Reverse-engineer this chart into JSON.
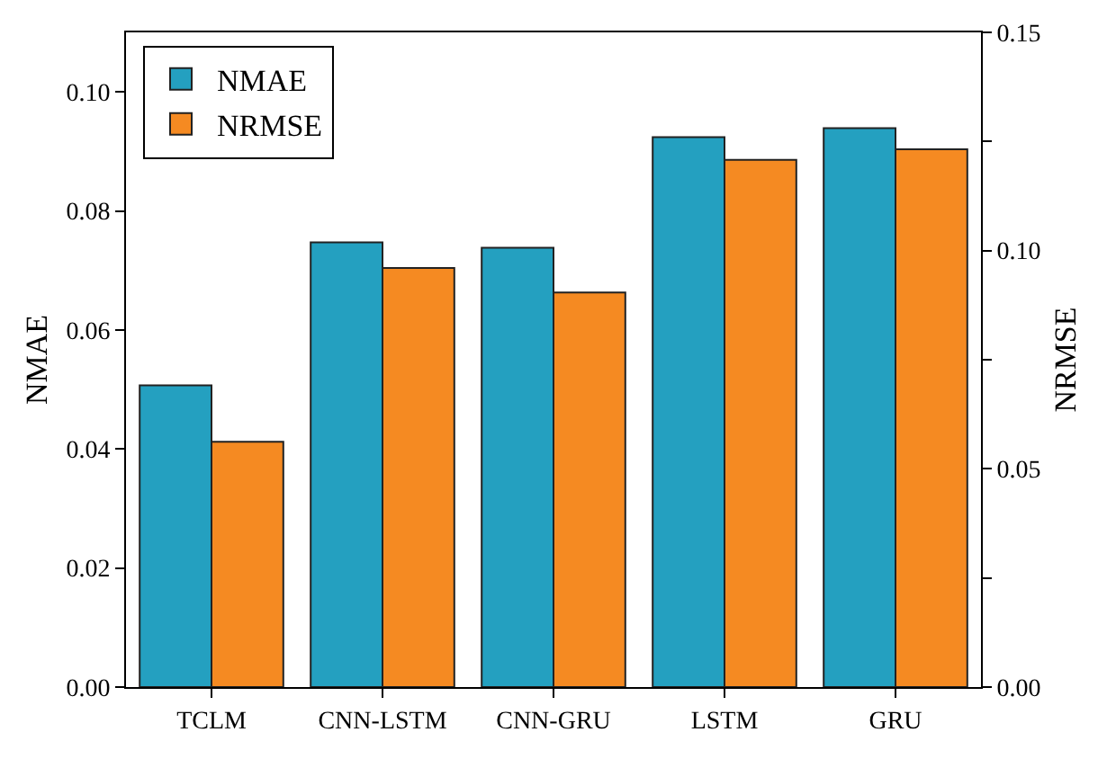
{
  "chart_data": {
    "type": "bar",
    "categories": [
      "TCLM",
      "CNN-LSTM",
      "CNN-GRU",
      "LSTM",
      "GRU"
    ],
    "ylabel": "NMAE",
    "y2label": "NRMSE",
    "series": [
      {
        "name": "NMAE",
        "color": "#24a0c0",
        "values": [
          0.0507,
          0.0747,
          0.0738,
          0.0924,
          0.0939
        ]
      },
      {
        "name": "NRMSE",
        "color": "#f58a22",
        "axis": "y2",
        "values": [
          0.0562,
          0.096,
          0.0904,
          0.1208,
          0.1232
        ]
      }
    ],
    "ylim": [
      0,
      0.11
    ],
    "yticks": [
      {
        "value": 0,
        "label": "0.00"
      },
      {
        "value": 0.02,
        "label": "0.02"
      },
      {
        "value": 0.04,
        "label": "0.04"
      },
      {
        "value": 0.06,
        "label": "0.06"
      },
      {
        "value": 0.08,
        "label": "0.08"
      },
      {
        "value": 0.1,
        "label": "0.10"
      }
    ],
    "y2lim": [
      0,
      0.15
    ],
    "y2ticks": [
      {
        "value": 0,
        "label": "0.00"
      },
      {
        "value": 0.025,
        "label": null
      },
      {
        "value": 0.05,
        "label": "0.05"
      },
      {
        "value": 0.075,
        "label": null
      },
      {
        "value": 0.1,
        "label": "0.10"
      },
      {
        "value": 0.125,
        "label": null
      },
      {
        "value": 0.15,
        "label": "0.15"
      }
    ],
    "legend": "top left",
    "grid": false
  }
}
